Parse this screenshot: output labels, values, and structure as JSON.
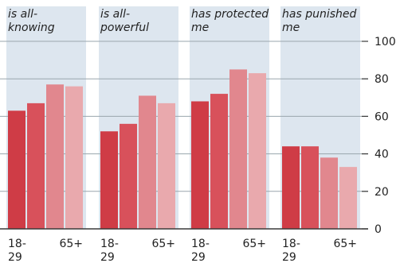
{
  "chart_data": {
    "type": "bar",
    "ylim": [
      0,
      100
    ],
    "yticks": [
      0,
      20,
      40,
      60,
      80,
      100
    ],
    "grid": true,
    "age_group_tick_labels": {
      "first_line_left": "18-",
      "second_line_left": "29",
      "right": "65+"
    },
    "colors": [
      "#cf3c46",
      "#d8515b",
      "#e1878e",
      "#e9a9ad"
    ],
    "panels": [
      {
        "title": "is all-\nknowing",
        "values": [
          63,
          67,
          77,
          76
        ]
      },
      {
        "title": "is all-\npowerful",
        "values": [
          52,
          56,
          71,
          67
        ]
      },
      {
        "title": "has protected\nme",
        "values": [
          68,
          72,
          85,
          83
        ]
      },
      {
        "title": "has punished\nme",
        "values": [
          44,
          44,
          38,
          33
        ]
      }
    ]
  }
}
